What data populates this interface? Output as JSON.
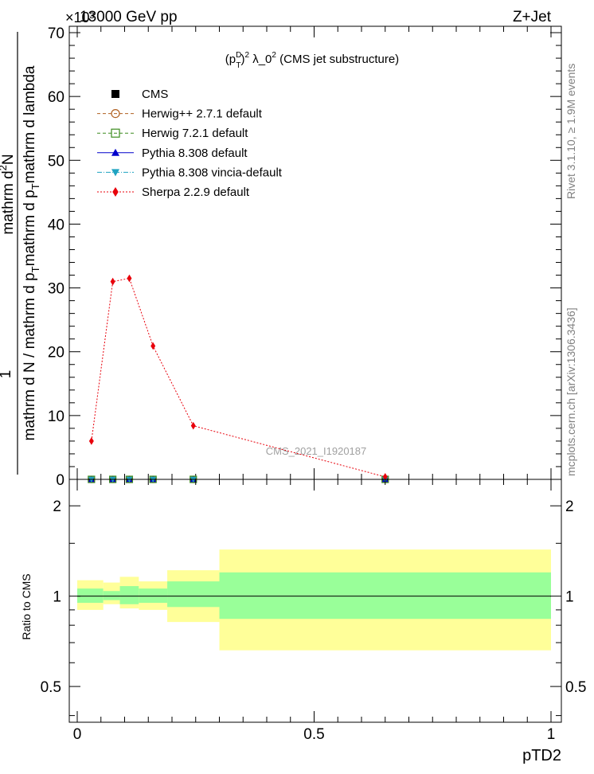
{
  "header": {
    "left": "13000 GeV pp",
    "right": "Z+Jet",
    "exponent": "×10³"
  },
  "side_labels": {
    "rivet": "Rivet 3.1.10, ≥ 1.9M events",
    "mcplots": "mcplots.cern.ch [arXiv:1306.3436]"
  },
  "watermark": "CMS_2021_I1920187",
  "chart_data": [
    {
      "type": "scatter",
      "title": "(p_T^D)^2 λ_0^2 (CMS jet substructure)",
      "title_parts": {
        "p": "(p",
        "sup_d": "D",
        "sub_t": "T",
        "close": ")",
        "sq1": "2",
        "mid": " λ_0",
        "sq2": "2",
        "end": " (CMS jet substructure)"
      },
      "xlabel": "pTD2",
      "ylabel_numerator": "1",
      "ylabel_denominator": "mathrm d N / mathrm d p _T mathrm d p _T mathrm d lambda",
      "ylabel_top": "mathrm d²N",
      "ylabel_bottom": "mathrm d p _T mathrm d lambda",
      "ylabel_parts": {
        "top": "mathrm d",
        "top_sup": "2",
        "top_end": "N",
        "den1": "mathrm d N / mathrm d p",
        "den_sub1": "T",
        "den2": "mathrm d p",
        "den_sub2": "T",
        "den3": "mathrm d lambda"
      },
      "xlim": [
        0,
        1
      ],
      "ylim": [
        0,
        71000
      ],
      "y_ticks": [
        0,
        10,
        20,
        30,
        40,
        50,
        60,
        70
      ],
      "y_tick_scale": 1000,
      "x_ticks": [
        0,
        0.5,
        1
      ],
      "x_tick_labels": [
        "0",
        "0.5",
        "1"
      ],
      "legend_position": "top-left",
      "series": [
        {
          "name": "CMS",
          "marker": "square",
          "color": "#000000",
          "line": "none",
          "x": [
            0.03,
            0.075,
            0.11,
            0.16,
            0.245,
            0.65
          ],
          "y": [
            0,
            0,
            0,
            0,
            0,
            0
          ]
        },
        {
          "name": "Herwig++ 2.7.1 default",
          "marker": "circle-open",
          "color": "#b06020",
          "line": "dashed",
          "x": [
            0.03,
            0.075,
            0.11,
            0.16,
            0.245,
            0.65
          ],
          "y": [
            0,
            0,
            0,
            0,
            0,
            0
          ]
        },
        {
          "name": "Herwig 7.2.1 default",
          "marker": "square-open",
          "color": "#3c8c1e",
          "line": "dashed",
          "x": [
            0.03,
            0.075,
            0.11,
            0.16,
            0.245,
            0.65
          ],
          "y": [
            0,
            0,
            0,
            0,
            0,
            0
          ]
        },
        {
          "name": "Pythia 8.308 default",
          "marker": "triangle-up",
          "color": "#0000cc",
          "line": "solid",
          "x": [
            0.03,
            0.075,
            0.11,
            0.16,
            0.245,
            0.65
          ],
          "y": [
            0,
            0,
            0,
            0,
            0,
            0
          ]
        },
        {
          "name": "Pythia 8.308 vincia-default",
          "marker": "triangle-down",
          "color": "#1fa3c1",
          "line": "dashdot",
          "x": [
            0.03,
            0.075,
            0.11,
            0.16,
            0.245,
            0.65
          ],
          "y": [
            0,
            0,
            0,
            0,
            0,
            0
          ]
        },
        {
          "name": "Sherpa 2.2.9 default",
          "marker": "diamond",
          "color": "#e8000b",
          "line": "dotted",
          "x": [
            0.03,
            0.075,
            0.11,
            0.16,
            0.245,
            0.65
          ],
          "y": [
            6000,
            31000,
            31500,
            20900,
            8400,
            400
          ]
        }
      ]
    },
    {
      "type": "area",
      "ylabel": "Ratio to CMS",
      "xlim": [
        0,
        1
      ],
      "ylim": [
        0.38,
        2.45
      ],
      "log_y": true,
      "y_ticks": [
        0.5,
        1,
        2
      ],
      "y_tick_labels": [
        "0.5",
        "1",
        "2"
      ],
      "reference_line": 1,
      "bins": [
        {
          "x0": 0.0,
          "x1": 0.055,
          "inner": [
            0.95,
            1.06
          ],
          "outer": [
            0.9,
            1.13
          ]
        },
        {
          "x0": 0.055,
          "x1": 0.09,
          "inner": [
            0.97,
            1.04
          ],
          "outer": [
            0.94,
            1.11
          ]
        },
        {
          "x0": 0.09,
          "x1": 0.13,
          "inner": [
            0.94,
            1.08
          ],
          "outer": [
            0.91,
            1.16
          ]
        },
        {
          "x0": 0.13,
          "x1": 0.19,
          "inner": [
            0.95,
            1.06
          ],
          "outer": [
            0.9,
            1.12
          ]
        },
        {
          "x0": 0.19,
          "x1": 0.3,
          "inner": [
            0.92,
            1.12
          ],
          "outer": [
            0.82,
            1.22
          ]
        },
        {
          "x0": 0.3,
          "x1": 1.0,
          "inner": [
            0.84,
            1.2
          ],
          "outer": [
            0.66,
            1.43
          ]
        }
      ]
    }
  ]
}
